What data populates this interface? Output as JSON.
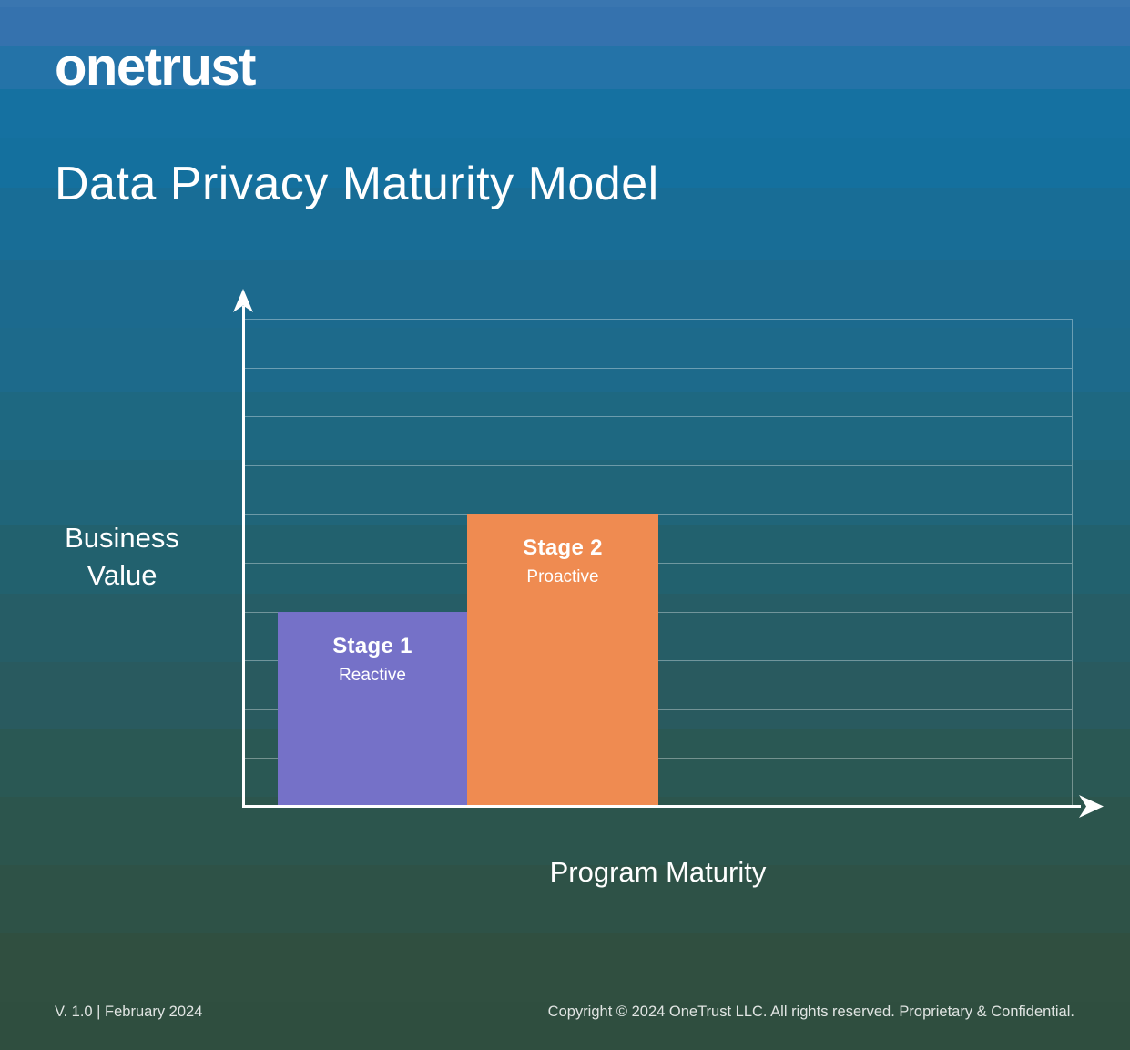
{
  "header": {
    "logo": "onetrust",
    "title": "Data Privacy Maturity Model"
  },
  "chart": {
    "ylabel_line1": "Business",
    "ylabel_line2": "Value",
    "xlabel": "Program Maturity"
  },
  "chart_data": {
    "type": "bar",
    "title": "Data Privacy Maturity Model",
    "categories": [
      "Stage 1",
      "Stage 2"
    ],
    "bar_sublabels": [
      "Reactive",
      "Proactive"
    ],
    "values": [
      4,
      6
    ],
    "bar_colors": [
      "#7571C8",
      "#EF8B51"
    ],
    "xlabel": "Program Maturity",
    "ylabel": "Business Value",
    "ylim": [
      0,
      10
    ],
    "grid": true,
    "grid_intervals": 10,
    "tick_labels": "none",
    "legend": "none"
  },
  "footer": {
    "version": "V. 1.0 | February 2024",
    "copyright": "Copyright © 2024 OneTrust LLC. All rights reserved. Proprietary & Confidential."
  },
  "colors": {
    "axis": "#FFFFFF",
    "gridline": "rgba(255,255,255,0.35)",
    "bar_stage1": "#7571C8",
    "bar_stage2": "#EF8B51",
    "background_top": "#3572AE",
    "background_bottom": "#2F4E3F"
  }
}
